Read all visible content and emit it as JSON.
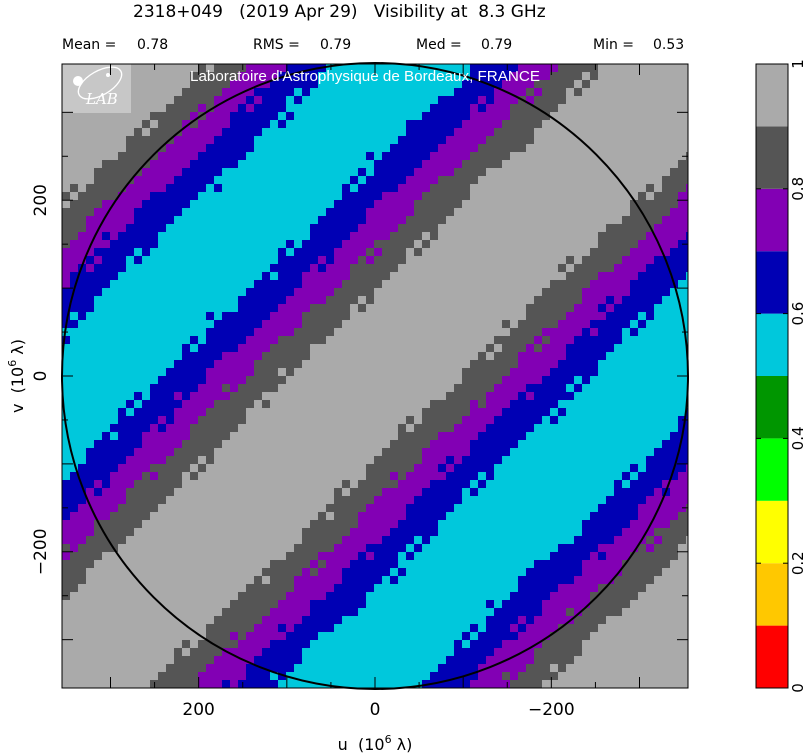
{
  "title": "2318+049   (2019 Apr 29)   Visibility at  8.3 GHz",
  "stats": [
    {
      "label": "Mean =",
      "value": "0.78"
    },
    {
      "label": "RMS =",
      "value": "0.79"
    },
    {
      "label": "Med =",
      "value": "0.79"
    },
    {
      "label": "Min =",
      "value": "0.53"
    }
  ],
  "lab_banner": "Laboratoire d'Astrophysique de Bordeaux, FRANCE",
  "logo_text": "LAB",
  "chart_data": {
    "type": "heatmap",
    "title": "2318+049   (2019 Apr 29)   Visibility at  8.3 GHz",
    "xlabel": "u  (10",
    "ylabel": "v  (10",
    "label_exponent": "6",
    "label_unit": " λ)",
    "xlim": [
      355,
      -355
    ],
    "ylim": [
      -355,
      355
    ],
    "x_ticks": [
      "200",
      "0",
      "−200"
    ],
    "x_tick_values": [
      200,
      0,
      -200
    ],
    "y_ticks": [
      "200",
      "0",
      "−200"
    ],
    "y_tick_values": [
      200,
      0,
      -200
    ],
    "circle_radius": 355,
    "fringe_period": 322,
    "fringe_direction": "stripes run from upper-left to lower-right",
    "colorbar": {
      "range": [
        0,
        1
      ],
      "ticks": [
        "0",
        "0.2",
        "0.4",
        "0.6",
        "0.8",
        "1"
      ],
      "tick_values": [
        0,
        0.2,
        0.4,
        0.6,
        0.8,
        1
      ],
      "levels": [
        {
          "from": 0.0,
          "to": 0.1,
          "color": "#ff0000"
        },
        {
          "from": 0.1,
          "to": 0.2,
          "color": "#ffc800"
        },
        {
          "from": 0.2,
          "to": 0.3,
          "color": "#ffff00"
        },
        {
          "from": 0.3,
          "to": 0.4,
          "color": "#00ff00"
        },
        {
          "from": 0.4,
          "to": 0.5,
          "color": "#009600"
        },
        {
          "from": 0.5,
          "to": 0.6,
          "color": "#00c8dc"
        },
        {
          "from": 0.6,
          "to": 0.7,
          "color": "#0000b4"
        },
        {
          "from": 0.7,
          "to": 0.8,
          "color": "#8200b4"
        },
        {
          "from": 0.8,
          "to": 0.9,
          "color": "#555555"
        },
        {
          "from": 0.9,
          "to": 1.0,
          "color": "#aaaaaa"
        }
      ]
    },
    "mean": 0.78,
    "rms": 0.79,
    "median": 0.79,
    "min": 0.53
  }
}
